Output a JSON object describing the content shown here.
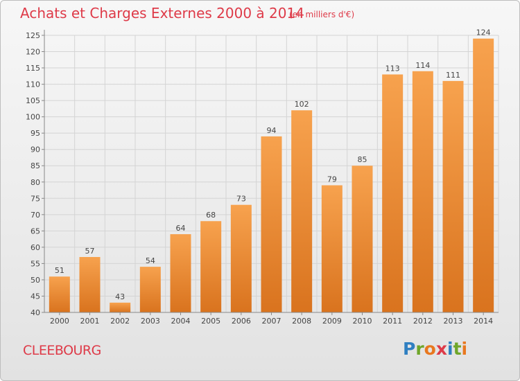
{
  "header": {
    "title": "Achats et Charges Externes 2000 à 2014",
    "unit": "(en milliers d'€)"
  },
  "footer": {
    "place": "CLEEBOURG",
    "logo": "Proxiti"
  },
  "colors": {
    "accent": "#de3a48",
    "bar_top": "#f7a24e",
    "bar_bottom": "#d9731e",
    "grid": "#d4d4d4",
    "logo_letters": [
      "#2f7fc1",
      "#6fa62a",
      "#e8781f",
      "#de3a48",
      "#2f7fc1",
      "#6fa62a",
      "#e8781f"
    ]
  },
  "chart_data": {
    "type": "bar",
    "categories": [
      "2000",
      "2001",
      "2002",
      "2003",
      "2004",
      "2005",
      "2006",
      "2007",
      "2008",
      "2009",
      "2010",
      "2011",
      "2012",
      "2013",
      "2014"
    ],
    "values": [
      51,
      57,
      43,
      54,
      64,
      68,
      73,
      94,
      102,
      79,
      85,
      113,
      114,
      111,
      124
    ],
    "value_labels": [
      "51",
      "57",
      "43",
      "54",
      "64",
      "68",
      "73",
      "94",
      "102",
      "79",
      "85",
      "113",
      "114",
      "111",
      "124"
    ],
    "title": "Achats et Charges Externes 2000 à 2014",
    "xlabel": "",
    "ylabel": "",
    "ylim": [
      40,
      125
    ],
    "yticks": [
      40,
      45,
      50,
      55,
      60,
      65,
      70,
      75,
      80,
      85,
      90,
      95,
      100,
      105,
      110,
      115,
      120,
      125
    ],
    "grid": true,
    "legend": "none"
  }
}
